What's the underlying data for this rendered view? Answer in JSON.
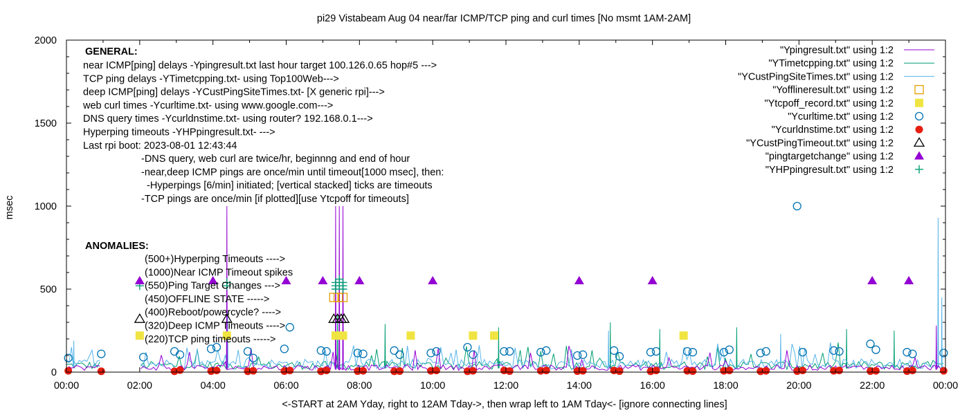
{
  "chart_data": {
    "type": "line",
    "title": "pi29 Vistabeam Aug 04  near/far ICMP/TCP ping and curl times [No msmt 1AM-2AM]",
    "xlabel": "<-START at 2AM Yday, right to 12AM Tday->, then wrap left to 1AM Tday<- [ignore connecting lines]",
    "ylabel": "msec",
    "xlim": [
      0,
      24
    ],
    "ylim": [
      0,
      2000
    ],
    "grid": false,
    "legend_position": "top-right",
    "x_ticks": [
      {
        "value": 0,
        "label": "00:00"
      },
      {
        "value": 2,
        "label": "02:00"
      },
      {
        "value": 4,
        "label": "04:00"
      },
      {
        "value": 6,
        "label": "06:00"
      },
      {
        "value": 8,
        "label": "08:00"
      },
      {
        "value": 10,
        "label": "10:00"
      },
      {
        "value": 12,
        "label": "12:00"
      },
      {
        "value": 14,
        "label": "14:00"
      },
      {
        "value": 16,
        "label": "16:00"
      },
      {
        "value": 18,
        "label": "18:00"
      },
      {
        "value": 20,
        "label": "20:00"
      },
      {
        "value": 22,
        "label": "22:00"
      },
      {
        "value": 24,
        "label": "00:00"
      }
    ],
    "y_ticks": [
      {
        "value": 0,
        "label": "0"
      },
      {
        "value": 500,
        "label": "500"
      },
      {
        "value": 1000,
        "label": "1000"
      },
      {
        "value": 1500,
        "label": "1500"
      },
      {
        "value": 2000,
        "label": "2000"
      }
    ],
    "general_notes": [
      "near ICMP[ping] delays -Ypingresult.txt last hour target 100.126.0.65 hop#5 --->",
      "TCP ping delays -YTimetcpping.txt- using Top100Web--->",
      "deep ICMP[ping] delays -YCustPingSiteTimes.txt- [X generic rpi]--->",
      "web curl times -Ycurltime.txt- using www.google.com--->",
      "DNS query times -Ycurldnstime.txt- using router? 192.168.0.1--->",
      "Hyperping timeouts -YHPpingresult.txt- --->",
      "Last rpi boot: 2023-08-01 12:43:44"
    ],
    "general_subnotes": [
      "-DNS query, web curl are twice/hr, beginnng and end of hour",
      "-near,deep ICMP pings are once/min until timeout[1000 msec], then:",
      "  -Hyperpings [6/min] initiated; [vertical stacked] ticks are timeouts",
      "-TCP pings are once/min [if plotted][use Ytcpoff for timeouts]"
    ],
    "general_header": "GENERAL:",
    "anomalies_header": "ANOMALIES:",
    "anomaly_items": [
      "(500+)Hyperping Timeouts ---->",
      "(1000)Near ICMP Timeout spikes",
      "(550)Ping Target Changes --->",
      "(450)OFFLINE STATE ----->",
      "(400)Reboot/powercycle? ---->",
      "(320)Deep ICMP Timeouts ---->",
      "(220)TCP ping timeouts ----->"
    ],
    "anomaly_marker_examples": [
      {
        "marker": "hp-cross",
        "y": 520
      },
      {
        "marker": "triangle-filled",
        "y": 550
      },
      {
        "marker": "triangle-open",
        "y": 320
      },
      {
        "marker": "square-filled",
        "y": 220
      }
    ],
    "series": [
      {
        "name": "\"Ypingresult.txt\" using 1:2",
        "style": "line",
        "color": "#9400d3",
        "baseline": 30,
        "spikes": [
          {
            "x": 4.38,
            "y": 1000
          },
          {
            "x": 7.35,
            "y": 1000
          },
          {
            "x": 7.45,
            "y": 1000
          },
          {
            "x": 7.55,
            "y": 1000
          },
          {
            "x": 23.75,
            "y": 280
          }
        ]
      },
      {
        "name": "\"YTimetcpping.txt\" using 1:2",
        "style": "line",
        "color": "#009e73",
        "baseline": 45,
        "spikes": [
          {
            "x": 4.38,
            "y": 320
          },
          {
            "x": 7.4,
            "y": 340
          },
          {
            "x": 8.7,
            "y": 290
          },
          {
            "x": 11.8,
            "y": 270
          },
          {
            "x": 14.85,
            "y": 300
          },
          {
            "x": 16.2,
            "y": 260
          },
          {
            "x": 18.3,
            "y": 270
          },
          {
            "x": 21.3,
            "y": 260
          },
          {
            "x": 22.6,
            "y": 250
          }
        ]
      },
      {
        "name": "\"YCustPingSiteTimes.txt\" using 1:2",
        "style": "line",
        "color": "#56b4e9",
        "baseline": 55,
        "spikes": [
          {
            "x": 0.2,
            "y": 190
          },
          {
            "x": 4.4,
            "y": 360
          },
          {
            "x": 7.45,
            "y": 400
          },
          {
            "x": 14.8,
            "y": 250
          },
          {
            "x": 19.5,
            "y": 230
          },
          {
            "x": 23.8,
            "y": 930
          },
          {
            "x": 23.9,
            "y": 450
          }
        ]
      },
      {
        "name": "\"Yofflineresult.txt\" using 1:2",
        "style": "marker",
        "marker": "square-open",
        "color": "#e69f00",
        "points": [
          {
            "x": 7.3,
            "y": 450
          },
          {
            "x": 7.42,
            "y": 450
          },
          {
            "x": 7.55,
            "y": 450
          }
        ]
      },
      {
        "name": "\"Ytcpoff_record.txt\" using 1:2",
        "style": "marker",
        "marker": "square-filled",
        "color": "#f0e442",
        "points": [
          {
            "x": 4.38,
            "y": 220
          },
          {
            "x": 7.35,
            "y": 220
          },
          {
            "x": 7.55,
            "y": 220
          },
          {
            "x": 9.4,
            "y": 220
          },
          {
            "x": 11.1,
            "y": 220
          },
          {
            "x": 11.68,
            "y": 220
          },
          {
            "x": 16.85,
            "y": 220
          }
        ]
      },
      {
        "name": "\"Ycurltime.txt\" using 1:2",
        "style": "marker",
        "marker": "circle-open",
        "color": "#0072b2",
        "points": [
          {
            "x": 0.05,
            "y": 85
          },
          {
            "x": 0.95,
            "y": 110
          },
          {
            "x": 2.1,
            "y": 90
          },
          {
            "x": 2.95,
            "y": 125
          },
          {
            "x": 3.1,
            "y": 105
          },
          {
            "x": 3.95,
            "y": 140
          },
          {
            "x": 4.1,
            "y": 150
          },
          {
            "x": 4.95,
            "y": 125
          },
          {
            "x": 5.1,
            "y": 85
          },
          {
            "x": 5.95,
            "y": 140
          },
          {
            "x": 6.1,
            "y": 270
          },
          {
            "x": 6.95,
            "y": 130
          },
          {
            "x": 7.1,
            "y": 125
          },
          {
            "x": 7.95,
            "y": 115
          },
          {
            "x": 8.1,
            "y": 110
          },
          {
            "x": 8.95,
            "y": 130
          },
          {
            "x": 9.1,
            "y": 105
          },
          {
            "x": 9.95,
            "y": 115
          },
          {
            "x": 10.1,
            "y": 125
          },
          {
            "x": 10.95,
            "y": 150
          },
          {
            "x": 11.1,
            "y": 105
          },
          {
            "x": 11.95,
            "y": 125
          },
          {
            "x": 12.1,
            "y": 125
          },
          {
            "x": 12.95,
            "y": 120
          },
          {
            "x": 13.1,
            "y": 130
          },
          {
            "x": 13.95,
            "y": 100
          },
          {
            "x": 14.1,
            "y": 105
          },
          {
            "x": 14.95,
            "y": 130
          },
          {
            "x": 15.1,
            "y": 95
          },
          {
            "x": 15.95,
            "y": 120
          },
          {
            "x": 16.1,
            "y": 125
          },
          {
            "x": 16.95,
            "y": 125
          },
          {
            "x": 17.1,
            "y": 120
          },
          {
            "x": 17.95,
            "y": 120
          },
          {
            "x": 18.1,
            "y": 135
          },
          {
            "x": 18.95,
            "y": 115
          },
          {
            "x": 19.1,
            "y": 125
          },
          {
            "x": 19.95,
            "y": 1000
          },
          {
            "x": 20.1,
            "y": 120
          },
          {
            "x": 20.95,
            "y": 130
          },
          {
            "x": 21.1,
            "y": 125
          },
          {
            "x": 21.95,
            "y": 170
          },
          {
            "x": 22.1,
            "y": 135
          },
          {
            "x": 22.95,
            "y": 120
          },
          {
            "x": 23.1,
            "y": 110
          },
          {
            "x": 23.95,
            "y": 115
          }
        ]
      },
      {
        "name": "\"Ycurldnstime.txt\" using 1:2",
        "style": "marker",
        "marker": "circle-filled",
        "color": "#e51e10",
        "points": [
          {
            "x": 0.05,
            "y": 8
          },
          {
            "x": 0.95,
            "y": 5
          },
          {
            "x": 2.95,
            "y": 5
          },
          {
            "x": 3.1,
            "y": 12
          },
          {
            "x": 3.95,
            "y": 6
          },
          {
            "x": 4.1,
            "y": 10
          },
          {
            "x": 4.95,
            "y": 5
          },
          {
            "x": 5.1,
            "y": 8
          },
          {
            "x": 5.95,
            "y": 6
          },
          {
            "x": 6.1,
            "y": 10
          },
          {
            "x": 6.95,
            "y": 5
          },
          {
            "x": 7.1,
            "y": 10
          },
          {
            "x": 7.95,
            "y": 6
          },
          {
            "x": 8.1,
            "y": 8
          },
          {
            "x": 8.95,
            "y": 5
          },
          {
            "x": 9.1,
            "y": 6
          },
          {
            "x": 9.95,
            "y": 8
          },
          {
            "x": 10.1,
            "y": 10
          },
          {
            "x": 10.95,
            "y": 5
          },
          {
            "x": 11.1,
            "y": 8
          },
          {
            "x": 11.95,
            "y": 10
          },
          {
            "x": 12.1,
            "y": 6
          },
          {
            "x": 12.95,
            "y": 8
          },
          {
            "x": 13.1,
            "y": 10
          },
          {
            "x": 13.95,
            "y": 6
          },
          {
            "x": 14.1,
            "y": 8
          },
          {
            "x": 14.95,
            "y": 10
          },
          {
            "x": 15.1,
            "y": 6
          },
          {
            "x": 15.95,
            "y": 5
          },
          {
            "x": 16.1,
            "y": 10
          },
          {
            "x": 16.95,
            "y": 8
          },
          {
            "x": 17.1,
            "y": 6
          },
          {
            "x": 17.95,
            "y": 8
          },
          {
            "x": 18.1,
            "y": 10
          },
          {
            "x": 18.95,
            "y": 5
          },
          {
            "x": 19.1,
            "y": 8
          },
          {
            "x": 19.95,
            "y": 6
          },
          {
            "x": 20.1,
            "y": 10
          },
          {
            "x": 20.95,
            "y": 8
          },
          {
            "x": 21.1,
            "y": 10
          },
          {
            "x": 21.95,
            "y": 6
          },
          {
            "x": 22.1,
            "y": 8
          },
          {
            "x": 22.95,
            "y": 6
          },
          {
            "x": 23.1,
            "y": 10
          },
          {
            "x": 23.95,
            "y": 8
          }
        ]
      },
      {
        "name": "\"YCustPingTimeout.txt\" using 1:2",
        "style": "marker",
        "marker": "triangle-open",
        "color": "#000000",
        "points": [
          {
            "x": 4.38,
            "y": 320
          },
          {
            "x": 7.3,
            "y": 320
          },
          {
            "x": 7.4,
            "y": 320
          },
          {
            "x": 7.5,
            "y": 320
          },
          {
            "x": 7.58,
            "y": 320
          }
        ]
      },
      {
        "name": "\"pingtargetchange\" using 1:2",
        "style": "marker",
        "marker": "triangle-filled",
        "color": "#9400d3",
        "points": [
          {
            "x": 4.0,
            "y": 550
          },
          {
            "x": 6.0,
            "y": 550
          },
          {
            "x": 7.0,
            "y": 550
          },
          {
            "x": 8.0,
            "y": 550
          },
          {
            "x": 10.0,
            "y": 550
          },
          {
            "x": 14.0,
            "y": 550
          },
          {
            "x": 16.0,
            "y": 550
          },
          {
            "x": 22.0,
            "y": 550
          },
          {
            "x": 23.0,
            "y": 550
          }
        ]
      },
      {
        "name": "\"YHPpingresult.txt\" using 1:2",
        "style": "marker",
        "marker": "cross",
        "color": "#009e73",
        "points": [
          {
            "x": 4.38,
            "y": 520
          },
          {
            "x": 4.38,
            "y": 540
          },
          {
            "x": 7.35,
            "y": 520
          },
          {
            "x": 7.35,
            "y": 540
          },
          {
            "x": 7.35,
            "y": 500
          },
          {
            "x": 7.45,
            "y": 520
          },
          {
            "x": 7.45,
            "y": 540
          },
          {
            "x": 7.45,
            "y": 560
          },
          {
            "x": 7.55,
            "y": 520
          },
          {
            "x": 7.55,
            "y": 540
          },
          {
            "x": 7.55,
            "y": 500
          }
        ]
      }
    ]
  }
}
